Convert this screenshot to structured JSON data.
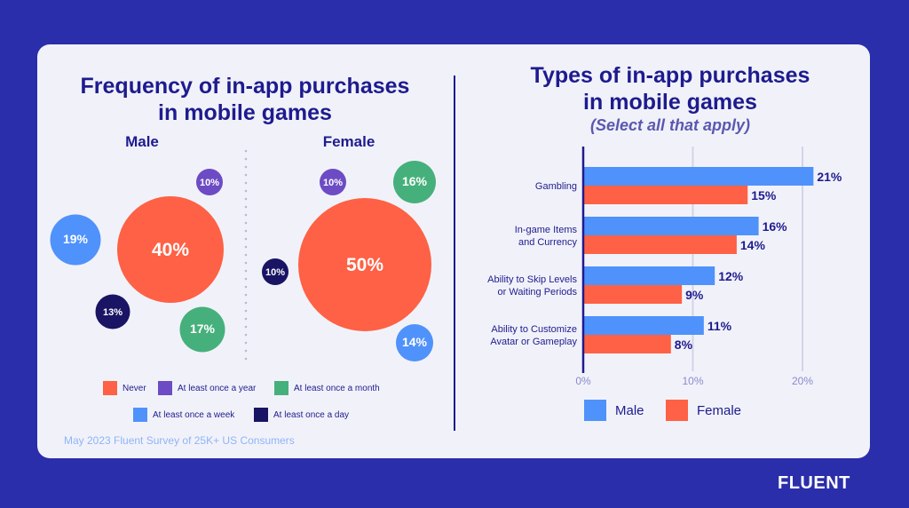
{
  "left_chart": {
    "title_line1": "Frequency of in-app purchases",
    "title_line2": "in mobile games",
    "groups": [
      {
        "name": "Male",
        "bubbles": [
          {
            "category": "Never",
            "value": 40
          },
          {
            "category": "At least once a week",
            "value": 19
          },
          {
            "category": "At least once a year",
            "value": 10
          },
          {
            "category": "At least once a day",
            "value": 13
          },
          {
            "category": "At least once a month",
            "value": 17
          }
        ]
      },
      {
        "name": "Female",
        "bubbles": [
          {
            "category": "Never",
            "value": 50
          },
          {
            "category": "At least once a year",
            "value": 10
          },
          {
            "category": "At least once a month",
            "value": 16
          },
          {
            "category": "At least once a day",
            "value": 10
          },
          {
            "category": "At least once a week",
            "value": 14
          }
        ]
      }
    ],
    "legend": [
      {
        "label": "Never",
        "color": "#fe6145"
      },
      {
        "label": "At least once a year",
        "color": "#6d4bc4"
      },
      {
        "label": "At least once a month",
        "color": "#46b07c"
      },
      {
        "label": "At least once a week",
        "color": "#4f92fb"
      },
      {
        "label": "At least once a day",
        "color": "#191464"
      }
    ]
  },
  "chart_data": {
    "type": "bar",
    "orientation": "horizontal",
    "title": "Types of in-app purchases in mobile games",
    "subtitle": "(Select all that apply)",
    "categories": [
      [
        "Gambling"
      ],
      [
        "In-game Items",
        "and Currency"
      ],
      [
        "Ability to Skip Levels",
        "or Waiting Periods"
      ],
      [
        "Ability to Customize",
        "Avatar or Gameplay"
      ]
    ],
    "series": [
      {
        "name": "Male",
        "color": "#4f92fb",
        "values": [
          21,
          16,
          12,
          11
        ],
        "labels": [
          "21%",
          "16%",
          "12%",
          "11%"
        ]
      },
      {
        "name": "Female",
        "color": "#fe6145",
        "values": [
          15,
          14,
          9,
          8
        ],
        "labels": [
          "15%",
          "14%",
          "9%",
          "8%"
        ]
      }
    ],
    "xlim": [
      0,
      20
    ],
    "ticks": [
      "0%",
      "10%",
      "20%"
    ],
    "tick_values": [
      0,
      10,
      20
    ],
    "grid": true,
    "legend_position": "bottom"
  },
  "source": "May 2023 Fluent Survey of 25K+ US Consumers",
  "brand": "FLUENT"
}
